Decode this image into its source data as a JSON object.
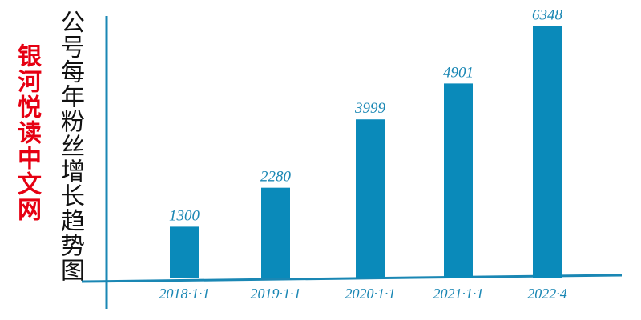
{
  "brand": {
    "text": "银河悦读中文网",
    "color": "#e60012"
  },
  "chart_data": {
    "type": "bar",
    "title": "",
    "ylabel": "公号每年粉丝增长趋势图",
    "xlabel": "",
    "categories": [
      "2018·1·1",
      "2019·1·1",
      "2020·1·1",
      "2021·1·1",
      "2022·4"
    ],
    "values": [
      1300,
      2280,
      3999,
      4901,
      6348
    ],
    "data_labels": [
      "1300",
      "2280",
      "3999",
      "4901",
      "6348"
    ],
    "ylim": [
      0,
      6800
    ],
    "grid": false,
    "legend": "none",
    "bar_color": "#0a8aba",
    "axis_color": "#1a87b4",
    "label_color": "#1a87b4"
  }
}
